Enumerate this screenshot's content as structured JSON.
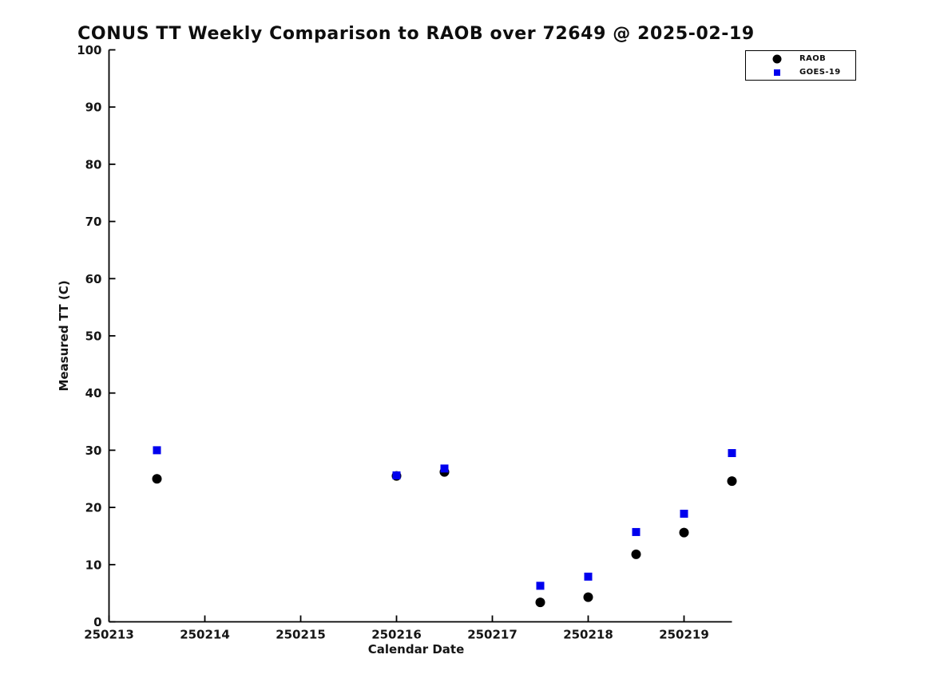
{
  "chart_data": {
    "type": "scatter",
    "title": "CONUS TT Weekly Comparison to RAOB over 72649 @ 2025-02-19",
    "xlabel": "Calendar Date",
    "ylabel": "Measured TT (C)",
    "xlim": [
      250213,
      250219.5
    ],
    "ylim": [
      0,
      100
    ],
    "x_ticks": [
      250213,
      250214,
      250215,
      250216,
      250217,
      250218,
      250219
    ],
    "y_ticks": [
      0,
      10,
      20,
      30,
      40,
      50,
      60,
      70,
      80,
      90,
      100
    ],
    "grid": false,
    "legend_position": "top-right",
    "x": [
      250213.5,
      250216.0,
      250216.5,
      250217.5,
      250218.0,
      250218.5,
      250219.0,
      250219.5
    ],
    "series": [
      {
        "name": "RAOB",
        "marker": "circle",
        "color": "#000000",
        "values": [
          25.0,
          25.5,
          26.2,
          3.4,
          4.3,
          11.8,
          15.6,
          24.6
        ]
      },
      {
        "name": "GOES-19",
        "marker": "square",
        "color": "#0000ee",
        "values": [
          30.0,
          25.6,
          26.8,
          6.3,
          7.9,
          15.7,
          18.9,
          29.5
        ]
      }
    ],
    "axis_color": "#000000"
  }
}
